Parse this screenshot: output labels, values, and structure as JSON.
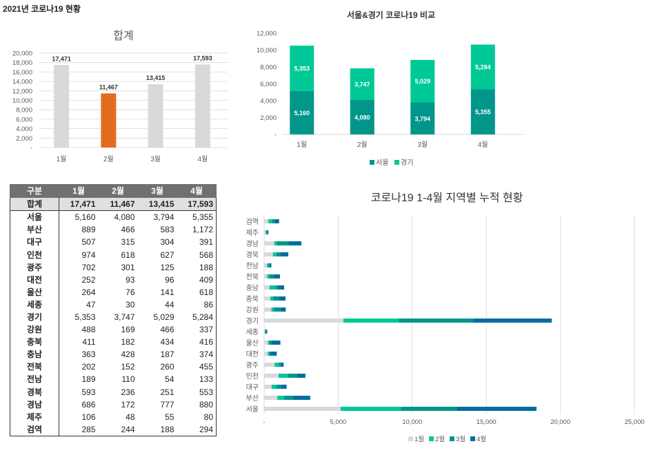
{
  "page": {
    "title": "2021년 코로나19 현황"
  },
  "months": [
    "1월",
    "2월",
    "3월",
    "4월"
  ],
  "colors": {
    "bar_gray": "#d9d9d9",
    "bar_highlight": "#e46c22",
    "seoul": "#00968a",
    "gyeonggi": "#00c896",
    "m1": "#d9d9d9",
    "m2": "#00c896",
    "m3": "#00968a",
    "m4": "#006e9e",
    "grid": "#d9d9d9",
    "axis_text": "#595959"
  },
  "table": {
    "header": [
      "구분",
      "1월",
      "2월",
      "3월",
      "4월"
    ],
    "total_row": {
      "label": "합계",
      "values": [
        "17,471",
        "11,467",
        "13,415",
        "17,593"
      ]
    },
    "rows": [
      {
        "region": "서울",
        "values": [
          "5,160",
          "4,080",
          "3,794",
          "5,355"
        ]
      },
      {
        "region": "부산",
        "values": [
          "889",
          "466",
          "583",
          "1,172"
        ]
      },
      {
        "region": "대구",
        "values": [
          "507",
          "315",
          "304",
          "391"
        ]
      },
      {
        "region": "인천",
        "values": [
          "974",
          "618",
          "627",
          "568"
        ]
      },
      {
        "region": "광주",
        "values": [
          "702",
          "301",
          "125",
          "188"
        ]
      },
      {
        "region": "대전",
        "values": [
          "252",
          "93",
          "96",
          "409"
        ]
      },
      {
        "region": "울산",
        "values": [
          "264",
          "76",
          "141",
          "618"
        ]
      },
      {
        "region": "세종",
        "values": [
          "47",
          "30",
          "44",
          "86"
        ]
      },
      {
        "region": "경기",
        "values": [
          "5,353",
          "3,747",
          "5,029",
          "5,284"
        ]
      },
      {
        "region": "강원",
        "values": [
          "488",
          "169",
          "466",
          "337"
        ]
      },
      {
        "region": "충북",
        "values": [
          "411",
          "182",
          "434",
          "416"
        ]
      },
      {
        "region": "충남",
        "values": [
          "363",
          "428",
          "187",
          "374"
        ]
      },
      {
        "region": "전북",
        "values": [
          "202",
          "152",
          "260",
          "455"
        ]
      },
      {
        "region": "전남",
        "values": [
          "189",
          "110",
          "54",
          "133"
        ]
      },
      {
        "region": "경북",
        "values": [
          "593",
          "236",
          "251",
          "553"
        ]
      },
      {
        "region": "경남",
        "values": [
          "686",
          "172",
          "777",
          "880"
        ]
      },
      {
        "region": "제주",
        "values": [
          "106",
          "48",
          "55",
          "80"
        ]
      },
      {
        "region": "검역",
        "values": [
          "285",
          "244",
          "188",
          "294"
        ]
      }
    ]
  },
  "chart_data": [
    {
      "type": "bar",
      "title": "합계",
      "categories": [
        "1월",
        "2월",
        "3월",
        "4월"
      ],
      "values": [
        17471,
        11467,
        13415,
        17593
      ],
      "data_labels": [
        "17,471",
        "11,467",
        "13,415",
        "17,593"
      ],
      "highlight_index": 1,
      "ylim": [
        0,
        20000
      ],
      "yticks": [
        "-",
        "2,000",
        "4,000",
        "6,000",
        "8,000",
        "10,000",
        "12,000",
        "14,000",
        "16,000",
        "18,000",
        "20,000"
      ],
      "grid": true
    },
    {
      "type": "bar",
      "stacked": true,
      "title": "서울&경기 코로나19 비교",
      "categories": [
        "1월",
        "2월",
        "3월",
        "4월"
      ],
      "series": [
        {
          "name": "서울",
          "values": [
            5160,
            4080,
            3794,
            5355
          ],
          "labels": [
            "5,160",
            "4,080",
            "3,794",
            "5,355"
          ]
        },
        {
          "name": "경기",
          "values": [
            5353,
            3747,
            5029,
            5284
          ],
          "labels": [
            "5,353",
            "3,747",
            "5,029",
            "5,284"
          ]
        }
      ],
      "ylim": [
        0,
        12000
      ],
      "yticks": [
        "-",
        "2,000",
        "4,000",
        "6,000",
        "8,000",
        "10,000",
        "12,000"
      ],
      "legend": "bottom",
      "grid": false
    },
    {
      "type": "bar",
      "orientation": "horizontal",
      "stacked": true,
      "title": "코로나19 1-4월 지역별 누적 현황",
      "categories": [
        "검역",
        "제주",
        "경남",
        "경북",
        "전남",
        "전북",
        "충남",
        "충북",
        "강원",
        "경기",
        "세종",
        "울산",
        "대전",
        "광주",
        "인천",
        "대구",
        "부산",
        "서울"
      ],
      "series": [
        {
          "name": "1월",
          "values": [
            285,
            106,
            686,
            593,
            189,
            202,
            363,
            411,
            488,
            5353,
            47,
            264,
            252,
            702,
            974,
            507,
            889,
            5160
          ]
        },
        {
          "name": "2월",
          "values": [
            244,
            48,
            172,
            236,
            110,
            152,
            428,
            182,
            169,
            3747,
            30,
            76,
            93,
            301,
            618,
            315,
            466,
            4080
          ]
        },
        {
          "name": "3월",
          "values": [
            188,
            55,
            777,
            251,
            54,
            260,
            187,
            434,
            466,
            5029,
            44,
            141,
            96,
            125,
            627,
            304,
            583,
            3794
          ]
        },
        {
          "name": "4월",
          "values": [
            294,
            80,
            880,
            553,
            133,
            455,
            374,
            416,
            337,
            5284,
            86,
            618,
            409,
            188,
            568,
            391,
            1172,
            5355
          ]
        }
      ],
      "xlim": [
        0,
        25000
      ],
      "xticks": [
        "-",
        "5,000",
        "10,000",
        "15,000",
        "20,000",
        "25,000"
      ],
      "legend": "bottom",
      "grid": true
    }
  ]
}
